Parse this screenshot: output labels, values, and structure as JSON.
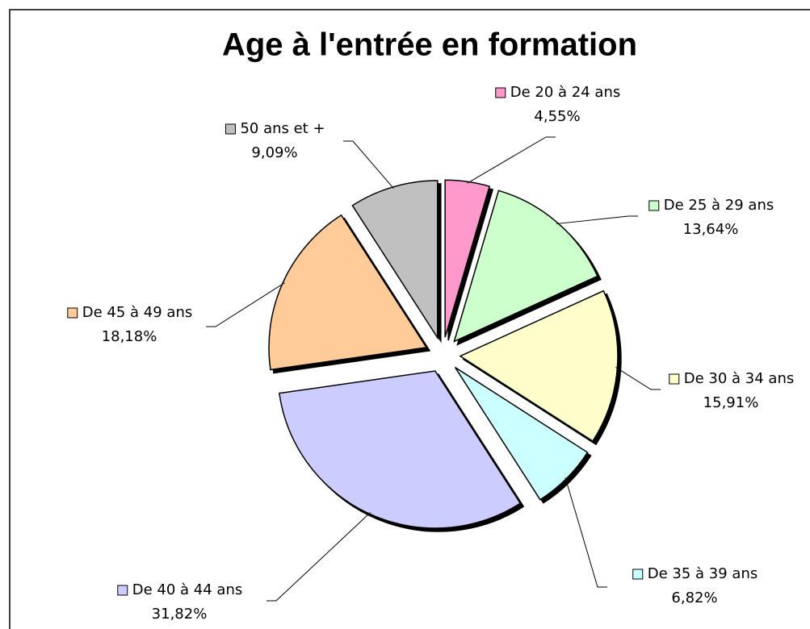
{
  "chart_data": {
    "type": "pie",
    "title": "Age à l'entrée en formation",
    "categories": [
      "De 20 à 24 ans",
      "De 25 à 29 ans",
      "De 30 à 34 ans",
      "De 35 à 39 ans",
      "De 40 à 44 ans",
      "De 45 à 49 ans",
      "50 ans et +"
    ],
    "values": [
      4.55,
      13.64,
      15.91,
      6.82,
      31.82,
      18.18,
      9.09
    ],
    "value_labels": [
      "4,55%",
      "13,64%",
      "15,91%",
      "6,82%",
      "31,82%",
      "18,18%",
      "9,09%"
    ],
    "colors": [
      "#ff99cc",
      "#ccffcc",
      "#ffffcc",
      "#ccffff",
      "#ccccff",
      "#ffcc99",
      "#c0c0c0"
    ]
  }
}
